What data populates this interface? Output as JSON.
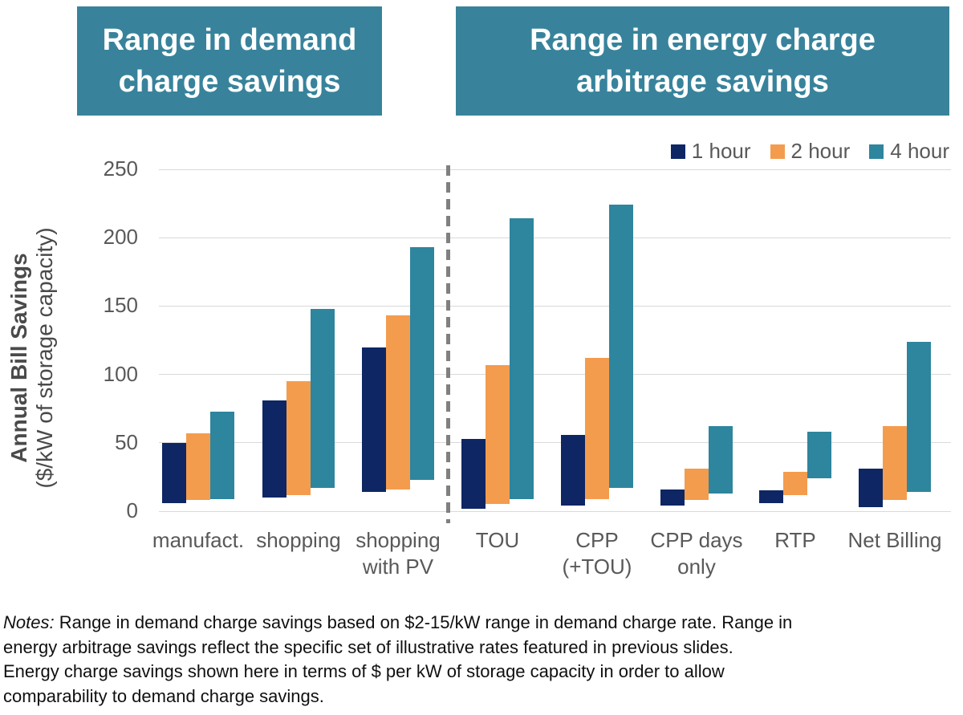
{
  "headers": {
    "bg_color": "#38839b",
    "text_color": "#ffffff",
    "left": {
      "lines": [
        "Range in demand",
        "charge savings"
      ]
    },
    "right": {
      "lines": [
        "Range in energy charge",
        "arbitrage savings"
      ]
    }
  },
  "legend": {
    "items": [
      {
        "label": "1 hour",
        "color": "#0e2664"
      },
      {
        "label": "2 hour",
        "color": "#f49c4d"
      },
      {
        "label": "4 hour",
        "color": "#2e859e"
      }
    ]
  },
  "y_axis": {
    "title": "Annual Bill Savings",
    "subtitle": "($/kW of storage capacity)"
  },
  "chart_data": {
    "type": "bar",
    "subtype": "floating_range_columns",
    "title": "",
    "xlabel": "",
    "ylabel": "Annual Bill Savings ($/kW of storage capacity)",
    "ylim": [
      0,
      250
    ],
    "gridline_values": [
      0,
      50,
      100,
      150,
      200,
      250
    ],
    "grid": true,
    "legend_position": "top-right",
    "categories": [
      "manufact.",
      "shopping",
      "shopping with PV",
      "TOU",
      "CPP (+TOU)",
      "CPP days only",
      "RTP",
      "Net Billing"
    ],
    "category_label_lines": [
      [
        "manufact."
      ],
      [
        "shopping"
      ],
      [
        "shopping",
        "with PV"
      ],
      [
        "TOU"
      ],
      [
        "CPP",
        "(+TOU)"
      ],
      [
        "CPP days",
        "only"
      ],
      [
        "RTP"
      ],
      [
        "Net Billing"
      ]
    ],
    "sections": [
      {
        "title": "Range in demand charge savings",
        "category_indexes": [
          0,
          1,
          2
        ]
      },
      {
        "title": "Range in energy charge arbitrage savings",
        "category_indexes": [
          3,
          4,
          5,
          6,
          7
        ]
      }
    ],
    "separator_after_category_index": 2,
    "series": [
      {
        "name": "1 hour",
        "color": "#0e2664",
        "ranges": [
          [
            6,
            50
          ],
          [
            10,
            81
          ],
          [
            14,
            120
          ],
          [
            2,
            53
          ],
          [
            4,
            56
          ],
          [
            4,
            16
          ],
          [
            6,
            15
          ],
          [
            3,
            31
          ]
        ]
      },
      {
        "name": "2 hour",
        "color": "#f49c4d",
        "ranges": [
          [
            8,
            57
          ],
          [
            12,
            95
          ],
          [
            16,
            143
          ],
          [
            5,
            107
          ],
          [
            9,
            112
          ],
          [
            8,
            31
          ],
          [
            12,
            29
          ],
          [
            8,
            62
          ]
        ]
      },
      {
        "name": "4 hour",
        "color": "#2e859e",
        "ranges": [
          [
            9,
            73
          ],
          [
            17,
            148
          ],
          [
            23,
            193
          ],
          [
            9,
            214
          ],
          [
            17,
            224
          ],
          [
            13,
            62
          ],
          [
            24,
            58
          ],
          [
            14,
            124
          ]
        ]
      }
    ]
  },
  "notes": {
    "prefix": "Notes:",
    "lines": [
      " Range in demand charge savings based on $2-15/kW range in demand charge rate. Range in",
      "energy arbitrage savings reflect the specific set of illustrative rates featured in previous slides.",
      "Energy charge savings shown here in terms of $ per kW of storage capacity in order to allow",
      "comparability to demand charge savings."
    ]
  }
}
